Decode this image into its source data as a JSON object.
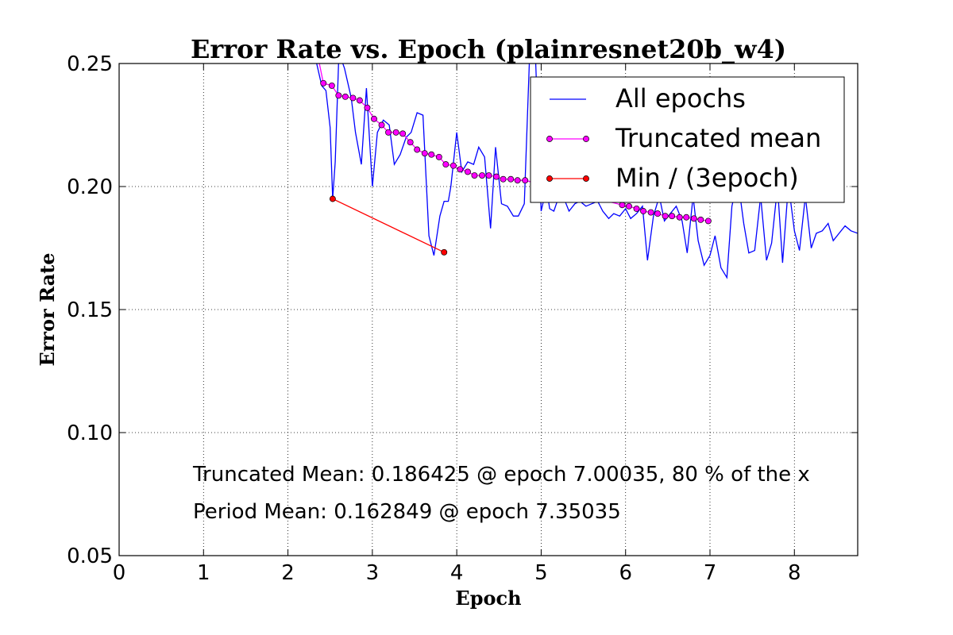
{
  "chart_data": {
    "type": "line",
    "title": "Error Rate vs. Epoch (plainresnet20b_w4)",
    "xlabel": "Epoch",
    "ylabel": "Error Rate",
    "xlim": [
      0,
      8.75
    ],
    "ylim": [
      0.05,
      0.25
    ],
    "xticks": [
      0,
      1,
      2,
      3,
      4,
      5,
      6,
      7,
      8
    ],
    "yticks": [
      0.05,
      0.1,
      0.15,
      0.2,
      0.25
    ],
    "ytick_labels": [
      "0.05",
      "0.10",
      "0.15",
      "0.20",
      "0.25"
    ],
    "grid": true,
    "legend_position": "top-right",
    "series": [
      {
        "name": "All epochs",
        "color": "#0000ff",
        "marker": "none",
        "x": [
          2.3,
          2.4,
          2.45,
          2.5,
          2.53,
          2.56,
          2.6,
          2.63,
          2.67,
          2.75,
          2.8,
          2.87,
          2.93,
          3.0,
          3.06,
          3.13,
          3.2,
          3.26,
          3.33,
          3.4,
          3.46,
          3.53,
          3.6,
          3.67,
          3.73,
          3.8,
          3.85,
          3.9,
          3.93,
          4.0,
          4.06,
          4.13,
          4.2,
          4.26,
          4.33,
          4.4,
          4.46,
          4.53,
          4.6,
          4.67,
          4.73,
          4.8,
          4.86,
          4.93,
          5.0,
          5.04,
          5.07,
          5.1,
          5.15,
          5.2,
          5.26,
          5.33,
          5.4,
          5.46,
          5.53,
          5.6,
          5.67,
          5.73,
          5.8,
          5.86,
          5.93,
          6.0,
          6.06,
          6.13,
          6.2,
          6.26,
          6.33,
          6.4,
          6.46,
          6.53,
          6.6,
          6.67,
          6.73,
          6.8,
          6.86,
          6.93,
          7.0,
          7.06,
          7.13,
          7.2,
          7.26,
          7.33,
          7.4,
          7.46,
          7.53,
          7.6,
          7.67,
          7.73,
          7.8,
          7.86,
          7.93,
          8.0,
          8.06,
          8.13,
          8.2,
          8.26,
          8.33,
          8.4,
          8.46,
          8.53,
          8.6,
          8.67,
          8.75
        ],
        "y": [
          0.256,
          0.241,
          0.239,
          0.224,
          0.195,
          0.21,
          0.25,
          0.252,
          0.248,
          0.236,
          0.222,
          0.209,
          0.24,
          0.2,
          0.222,
          0.227,
          0.225,
          0.209,
          0.213,
          0.22,
          0.222,
          0.23,
          0.229,
          0.18,
          0.172,
          0.188,
          0.194,
          0.194,
          0.2,
          0.222,
          0.206,
          0.21,
          0.209,
          0.216,
          0.212,
          0.183,
          0.216,
          0.193,
          0.192,
          0.188,
          0.188,
          0.193,
          0.25,
          0.255,
          0.19,
          0.196,
          0.198,
          0.191,
          0.19,
          0.195,
          0.196,
          0.19,
          0.193,
          0.194,
          0.192,
          0.193,
          0.194,
          0.19,
          0.187,
          0.189,
          0.188,
          0.191,
          0.187,
          0.189,
          0.192,
          0.17,
          0.188,
          0.196,
          0.186,
          0.189,
          0.192,
          0.186,
          0.173,
          0.196,
          0.178,
          0.168,
          0.172,
          0.18,
          0.167,
          0.163,
          0.192,
          0.203,
          0.185,
          0.173,
          0.174,
          0.196,
          0.17,
          0.177,
          0.2,
          0.169,
          0.201,
          0.182,
          0.174,
          0.196,
          0.175,
          0.181,
          0.182,
          0.185,
          0.178,
          0.181,
          0.184,
          0.182,
          0.181
        ]
      },
      {
        "name": "Truncated mean",
        "color": "#ff00ff",
        "marker": "circle",
        "marker_color": "#ff00ff",
        "x": [
          2.3,
          2.42,
          2.52,
          2.6,
          2.68,
          2.77,
          2.85,
          2.94,
          3.02,
          3.11,
          3.19,
          3.28,
          3.36,
          3.45,
          3.53,
          3.62,
          3.7,
          3.79,
          3.87,
          3.96,
          4.04,
          4.13,
          4.21,
          4.3,
          4.38,
          4.47,
          4.55,
          4.64,
          4.72,
          4.81,
          5.96,
          6.04,
          6.13,
          6.21,
          6.3,
          6.38,
          6.47,
          6.55,
          6.64,
          6.72,
          6.81,
          6.89,
          6.98
        ],
        "y": [
          0.262,
          0.242,
          0.241,
          0.237,
          0.2365,
          0.236,
          0.235,
          0.232,
          0.2275,
          0.225,
          0.222,
          0.222,
          0.2215,
          0.218,
          0.215,
          0.2135,
          0.213,
          0.212,
          0.209,
          0.2085,
          0.207,
          0.206,
          0.2045,
          0.2045,
          0.2045,
          0.204,
          0.203,
          0.203,
          0.2025,
          0.2025,
          0.1925,
          0.192,
          0.191,
          0.19,
          0.1895,
          0.189,
          0.188,
          0.188,
          0.1875,
          0.1875,
          0.187,
          0.1865,
          0.186
        ]
      },
      {
        "name": "Min / (3epoch)",
        "color": "#ff0000",
        "marker": "circle",
        "marker_color": "#ff0000",
        "x": [
          2.53,
          3.85
        ],
        "y": [
          0.195,
          0.1733
        ]
      }
    ],
    "annotations": [
      "Truncated Mean: 0.186425 @ epoch 7.00035, 80 % of the x",
      "Period Mean: 0.162849 @ epoch 7.35035"
    ]
  }
}
